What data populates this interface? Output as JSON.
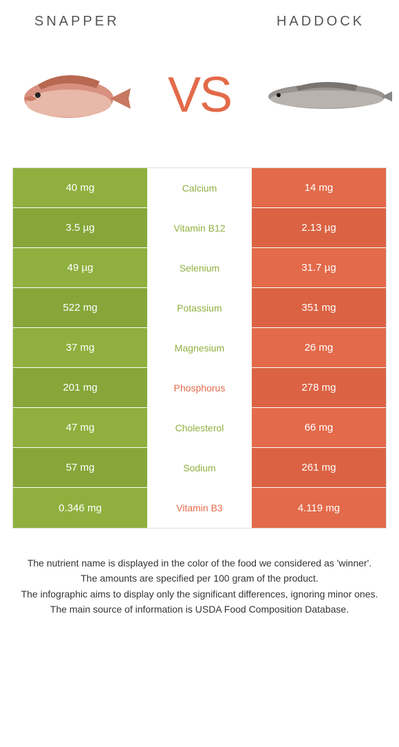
{
  "colors": {
    "left": "#8fb03e",
    "right": "#e36a4a",
    "left_alt": "#86a639",
    "right_alt": "#db6344",
    "mid_text_left": "#8fb03e",
    "mid_text_right": "#e36a4a"
  },
  "header": {
    "left_title": "Snapper",
    "right_title": "Haddock",
    "vs": "VS"
  },
  "rows": [
    {
      "left": "40 mg",
      "mid": "Calcium",
      "right": "14 mg",
      "winner": "left"
    },
    {
      "left": "3.5 µg",
      "mid": "Vitamin B12",
      "right": "2.13 µg",
      "winner": "left"
    },
    {
      "left": "49 µg",
      "mid": "Selenium",
      "right": "31.7 µg",
      "winner": "left"
    },
    {
      "left": "522 mg",
      "mid": "Potassium",
      "right": "351 mg",
      "winner": "left"
    },
    {
      "left": "37 mg",
      "mid": "Magnesium",
      "right": "26 mg",
      "winner": "left"
    },
    {
      "left": "201 mg",
      "mid": "Phosphorus",
      "right": "278 mg",
      "winner": "right"
    },
    {
      "left": "47 mg",
      "mid": "Cholesterol",
      "right": "66 mg",
      "winner": "left"
    },
    {
      "left": "57 mg",
      "mid": "Sodium",
      "right": "261 mg",
      "winner": "left"
    },
    {
      "left": "0.346 mg",
      "mid": "Vitamin B3",
      "right": "4.119 mg",
      "winner": "right"
    }
  ],
  "footer": {
    "line1": "The nutrient name is displayed in the color of the food we considered as 'winner'.",
    "line2": "The amounts are specified per 100 gram of the product.",
    "line3": "The infographic aims to display only the significant differences, ignoring minor ones.",
    "line4": "The main source of information is USDA Food Composition Database."
  }
}
